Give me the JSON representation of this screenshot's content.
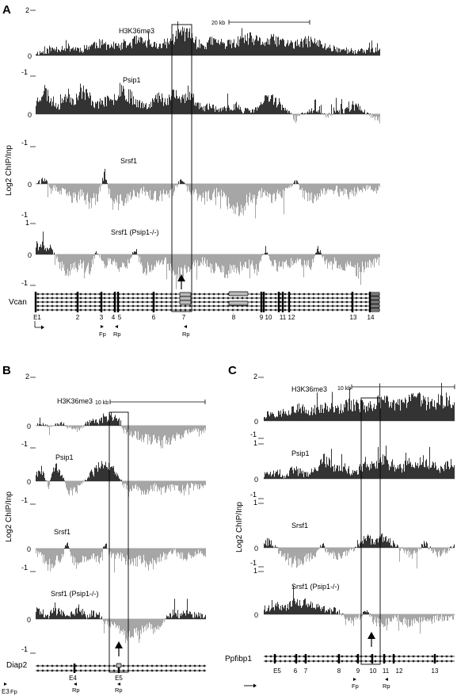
{
  "figure": {
    "ylabel": "Log2 ChIP/Inp",
    "colors": {
      "positive": "#333333",
      "negative": "#a6a6a6",
      "line": "#000000"
    }
  },
  "chart_data": [
    {
      "type": "area",
      "panel": "A",
      "gene": "Vcan",
      "scale_bar": "20 kb",
      "ylabel": "Log2 ChIP/Inp",
      "tracks": [
        {
          "label": "H3K36me3",
          "top_tick": "2",
          "zero_tick": "0",
          "bottom_tick": "",
          "ylim": [
            -1,
            2
          ],
          "profile": [
            0.1,
            0.15,
            0.25,
            0.3,
            0.35,
            0.3,
            0.25,
            0.4,
            0.5,
            0.45,
            0.4,
            0.35,
            0.45,
            0.6,
            0.55,
            0.45,
            0.4,
            0.5,
            0.7,
            1.0,
            0.9,
            0.5,
            0.4,
            0.6,
            0.55,
            0.45,
            0.5,
            0.65,
            0.7,
            0.6,
            0.55,
            0.65,
            0.6,
            0.5,
            0.45,
            0.55,
            0.6,
            0.5,
            0.35,
            0.3,
            0.25,
            0.2,
            0.15,
            0.2,
            0.25,
            0.2
          ]
        },
        {
          "label": "Psip1",
          "top_tick": "",
          "zero_tick": "0",
          "bottom_tick": "-1",
          "ylim": [
            -1,
            2
          ],
          "profile": [
            0.4,
            0.9,
            0.5,
            0.3,
            0.7,
            0.5,
            0.9,
            0.6,
            0.3,
            0.5,
            0.4,
            1.0,
            0.7,
            0.5,
            0.3,
            0.4,
            0.6,
            0.5,
            0.7,
            0.5,
            0.8,
            0.4,
            0.2,
            0.3,
            0.1,
            0.2,
            0.3,
            0.15,
            0.1,
            0.2,
            0.5,
            0.6,
            0.3,
            0.1,
            -0.2,
            0.05,
            0.1,
            0.2,
            -0.1,
            0.05,
            0.1,
            0.2,
            0.3,
            0.1,
            -0.1,
            -0.2
          ]
        },
        {
          "label": "Srsf1",
          "top_tick": "",
          "zero_tick": "0",
          "bottom_tick": "-1",
          "ylim": [
            -1,
            2
          ],
          "profile": [
            0.05,
            0.1,
            -0.1,
            -0.2,
            -0.3,
            -0.4,
            -0.3,
            -0.5,
            -0.4,
            0.3,
            -0.6,
            -0.5,
            -0.4,
            -0.3,
            -0.2,
            -0.3,
            -0.4,
            -0.3,
            -0.2,
            0.1,
            -0.2,
            -0.3,
            -0.4,
            -0.3,
            -0.2,
            -0.5,
            -0.6,
            -0.7,
            -0.4,
            -0.3,
            -0.2,
            -0.4,
            -0.3,
            -0.2,
            0.1,
            -0.3,
            -0.4,
            -0.3,
            -0.2,
            -0.1,
            -0.2,
            -0.3,
            -0.2,
            -0.1,
            -0.2,
            -0.1
          ]
        },
        {
          "label": "Srsf1 (Psip1-/-)",
          "top_tick": "1",
          "zero_tick": "0",
          "bottom_tick": "-1",
          "ylim": [
            -1,
            1
          ],
          "profile": [
            0.3,
            0.25,
            0.2,
            -0.3,
            -0.5,
            -0.4,
            -0.3,
            -0.5,
            0.1,
            -0.3,
            -0.2,
            -0.4,
            -0.3,
            0.2,
            -0.5,
            -0.4,
            -0.3,
            -0.2,
            -0.5,
            -0.6,
            -0.4,
            -0.3,
            -0.2,
            -0.4,
            -0.5,
            -0.6,
            -0.5,
            -0.4,
            -0.3,
            -0.5,
            0.2,
            -0.3,
            -0.4,
            -0.3,
            -0.2,
            -0.3,
            -0.4,
            0.2,
            -0.3,
            -0.2,
            -0.4,
            -0.3,
            -0.5,
            -0.4,
            -0.3,
            -0.2
          ]
        }
      ],
      "exons": [
        "E1",
        "2",
        "3",
        "4",
        "5",
        "6",
        "7",
        "8",
        "9",
        "10",
        "11",
        "12",
        "13",
        "14"
      ],
      "primers": [
        "Fp",
        "Rp",
        "Rp"
      ],
      "box_exon": "7"
    },
    {
      "type": "area",
      "panel": "B",
      "gene": "Diap2",
      "scale_bar": "10 kb",
      "ylabel": "Log2 ChIP/Inp",
      "tracks": [
        {
          "label": "H3K36me3",
          "top_tick": "2",
          "zero_tick": "0",
          "bottom_tick": "",
          "ylim": [
            -1,
            2
          ],
          "profile": [
            0.05,
            0.1,
            -0.05,
            0.08,
            0.1,
            -0.05,
            -0.1,
            -0.2,
            0.1,
            0.2,
            0.15,
            0.3,
            0.4,
            0.25,
            -0.2,
            -0.3,
            -0.4,
            -0.5,
            -0.6,
            -0.5,
            -0.7,
            -0.6,
            -0.5,
            -0.4,
            -0.3,
            -0.2,
            -0.3,
            -0.2
          ]
        },
        {
          "label": "Psip1",
          "top_tick": "",
          "zero_tick": "0",
          "bottom_tick": "-1",
          "ylim": [
            -1,
            2
          ],
          "profile": [
            0.3,
            0.4,
            -0.2,
            0.5,
            0.3,
            -0.3,
            -0.4,
            -0.2,
            0.1,
            0.3,
            0.5,
            0.6,
            0.4,
            0.3,
            -0.2,
            -0.3,
            -0.2,
            -0.4,
            -0.3,
            -0.2,
            -0.4,
            -0.3,
            -0.2,
            -0.3,
            -0.2,
            -0.1,
            -0.2,
            -0.1
          ]
        },
        {
          "label": "Srsf1",
          "top_tick": "",
          "zero_tick": "0",
          "bottom_tick": "-1",
          "ylim": [
            -1,
            2
          ],
          "profile": [
            -0.1,
            -0.3,
            -0.6,
            -0.4,
            -0.3,
            0.2,
            -0.5,
            -0.4,
            -0.3,
            -0.2,
            -0.4,
            0.2,
            -0.3,
            -0.2,
            -0.3,
            -0.5,
            -0.4,
            -0.3,
            -0.6,
            -0.4,
            -0.3,
            -0.2,
            -0.1,
            -0.2,
            -0.3,
            -0.2,
            -0.1,
            -0.2
          ]
        },
        {
          "label": "Srsf1 (Psip1-/-)",
          "top_tick": "",
          "zero_tick": "0",
          "bottom_tick": "-1",
          "ylim": [
            -1,
            1
          ],
          "profile": [
            0.3,
            0.2,
            0.1,
            0.3,
            0.2,
            0.1,
            0.2,
            0.3,
            0.1,
            0.2,
            0.15,
            -0.1,
            -0.2,
            -0.3,
            -0.5,
            -0.6,
            -0.4,
            -0.3,
            -0.2,
            -0.3,
            -0.2,
            0.1,
            0.2,
            0.1,
            0.2,
            0.15,
            0.1,
            0.05
          ]
        }
      ],
      "exons": [
        "E3",
        "E4",
        "E5"
      ],
      "primers": [
        "Fp",
        "Rp",
        "Rp"
      ],
      "box_exon": "E5"
    },
    {
      "type": "area",
      "panel": "C",
      "gene": "Ppfibp1",
      "scale_bar": "10 kb",
      "ylabel": "Log2 ChIP/Inp",
      "tracks": [
        {
          "label": "H3K36me3",
          "top_tick": "2",
          "zero_tick": "0",
          "bottom_tick": "",
          "ylim": [
            -1,
            2
          ],
          "profile": [
            0.2,
            0.3,
            0.25,
            0.35,
            0.4,
            0.45,
            0.3,
            0.4,
            0.5,
            0.45,
            0.4,
            0.5,
            0.6,
            0.55,
            0.5,
            0.6,
            0.7,
            0.65,
            0.55,
            0.6,
            0.7,
            0.8,
            0.65,
            0.6,
            0.7,
            0.75,
            0.6
          ]
        },
        {
          "label": "Psip1",
          "top_tick": "1",
          "zero_tick": "0",
          "bottom_tick": "-1",
          "ylim": [
            -1,
            1
          ],
          "profile": [
            0.1,
            0.15,
            0.2,
            0.1,
            0.3,
            0.2,
            0.15,
            0.25,
            0.6,
            0.5,
            0.3,
            0.4,
            0.2,
            0.3,
            0.5,
            0.4,
            0.6,
            0.5,
            0.4,
            0.3,
            0.5,
            0.4,
            0.6,
            0.5,
            0.3,
            0.4,
            0.5
          ]
        },
        {
          "label": "Srsf1",
          "top_tick": "1",
          "zero_tick": "0",
          "bottom_tick": "-1",
          "ylim": [
            -1,
            1
          ],
          "profile": [
            0.2,
            0.15,
            -0.1,
            -0.3,
            -0.5,
            -0.4,
            -0.3,
            -0.2,
            0.1,
            -0.2,
            -0.3,
            -0.2,
            -0.1,
            0.1,
            0.3,
            0.2,
            0.35,
            0.2,
            0.1,
            -0.1,
            -0.2,
            -0.1,
            0.15,
            -0.1,
            -0.2,
            -0.1,
            0.05
          ]
        },
        {
          "label": "Srsf1 (Psip1-/-)",
          "top_tick": "1",
          "zero_tick": "0",
          "bottom_tick": "",
          "ylim": [
            -1,
            1
          ],
          "profile": [
            0.2,
            0.25,
            0.3,
            0.2,
            0.35,
            0.4,
            0.3,
            0.25,
            0.2,
            0.1,
            0.15,
            -0.1,
            -0.2,
            -0.1,
            0.1,
            -0.2,
            -0.3,
            -0.2,
            -0.1,
            -0.2,
            -0.3,
            -0.2,
            -0.1,
            -0.2,
            -0.1,
            -0.15,
            -0.1
          ]
        }
      ],
      "exons": [
        "E5",
        "6",
        "7",
        "8",
        "9",
        "10",
        "11",
        "12",
        "13"
      ],
      "primers": [
        "Fp",
        "Rp"
      ],
      "box_exon": "10"
    }
  ]
}
